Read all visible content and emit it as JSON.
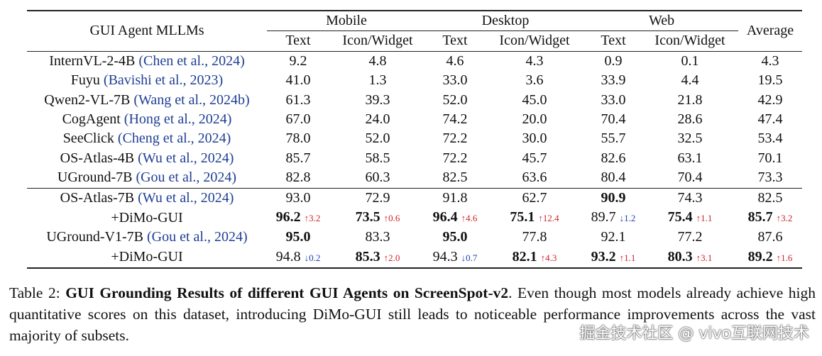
{
  "table": {
    "header": {
      "model_col": "GUI Agent MLLMs",
      "groups": [
        "Mobile",
        "Desktop",
        "Web"
      ],
      "average": "Average",
      "subcols": [
        "Text",
        "Icon/Widget",
        "Text",
        "Icon/Widget",
        "Text",
        "Icon/Widget"
      ]
    },
    "rows": [
      {
        "name": "InternVL-2-4B",
        "cite": "(Chen et al., 2024)",
        "cells": [
          {
            "v": "9.2"
          },
          {
            "v": "4.8"
          },
          {
            "v": "4.6"
          },
          {
            "v": "4.3"
          },
          {
            "v": "0.9"
          },
          {
            "v": "0.1"
          },
          {
            "v": "4.3"
          }
        ]
      },
      {
        "name": "Fuyu",
        "cite": "(Bavishi et al., 2023)",
        "cells": [
          {
            "v": "41.0"
          },
          {
            "v": "1.3"
          },
          {
            "v": "33.0"
          },
          {
            "v": "3.6"
          },
          {
            "v": "33.9"
          },
          {
            "v": "4.4"
          },
          {
            "v": "19.5"
          }
        ]
      },
      {
        "name": "Qwen2-VL-7B",
        "cite": "(Wang et al., 2024b)",
        "cells": [
          {
            "v": "61.3"
          },
          {
            "v": "39.3"
          },
          {
            "v": "52.0"
          },
          {
            "v": "45.0"
          },
          {
            "v": "33.0"
          },
          {
            "v": "21.8"
          },
          {
            "v": "42.9"
          }
        ]
      },
      {
        "name": "CogAgent",
        "cite": "(Hong et al., 2024)",
        "cells": [
          {
            "v": "67.0"
          },
          {
            "v": "24.0"
          },
          {
            "v": "74.2"
          },
          {
            "v": "20.0"
          },
          {
            "v": "70.4"
          },
          {
            "v": "28.6"
          },
          {
            "v": "47.4"
          }
        ]
      },
      {
        "name": "SeeClick",
        "cite": "(Cheng et al., 2024)",
        "cells": [
          {
            "v": "78.0"
          },
          {
            "v": "52.0"
          },
          {
            "v": "72.2"
          },
          {
            "v": "30.0"
          },
          {
            "v": "55.7"
          },
          {
            "v": "32.5"
          },
          {
            "v": "53.4"
          }
        ]
      },
      {
        "name": "OS-Atlas-4B",
        "cite": "(Wu et al., 2024)",
        "cells": [
          {
            "v": "85.7"
          },
          {
            "v": "58.5"
          },
          {
            "v": "72.2"
          },
          {
            "v": "45.7"
          },
          {
            "v": "82.6"
          },
          {
            "v": "63.1"
          },
          {
            "v": "70.1"
          }
        ]
      },
      {
        "name": "UGround-7B",
        "cite": "(Gou et al., 2024)",
        "cells": [
          {
            "v": "82.8"
          },
          {
            "v": "60.3"
          },
          {
            "v": "82.5"
          },
          {
            "v": "63.6"
          },
          {
            "v": "80.4"
          },
          {
            "v": "70.4"
          },
          {
            "v": "73.3"
          }
        ]
      },
      {
        "name": "OS-Atlas-7B",
        "cite": "(Wu et al., 2024)",
        "sep": true,
        "cells": [
          {
            "v": "93.0"
          },
          {
            "v": "72.9"
          },
          {
            "v": "91.8"
          },
          {
            "v": "62.7"
          },
          {
            "v": "90.9",
            "b": true
          },
          {
            "v": "74.3"
          },
          {
            "v": "82.5"
          }
        ]
      },
      {
        "name": "+DiMo-GUI",
        "cite": "",
        "cells": [
          {
            "v": "96.2",
            "b": true,
            "d": "↑3.2",
            "dir": "up"
          },
          {
            "v": "73.5",
            "b": true,
            "d": "↑0.6",
            "dir": "up"
          },
          {
            "v": "96.4",
            "b": true,
            "d": "↑4.6",
            "dir": "up"
          },
          {
            "v": "75.1",
            "b": true,
            "d": "↑12.4",
            "dir": "up"
          },
          {
            "v": "89.7",
            "d": "↓1.2",
            "dir": "down"
          },
          {
            "v": "75.4",
            "b": true,
            "d": "↑1.1",
            "dir": "up"
          },
          {
            "v": "85.7",
            "b": true,
            "d": "↑3.2",
            "dir": "up"
          }
        ]
      },
      {
        "name": "UGround-V1-7B",
        "cite": "(Gou et al., 2024)",
        "cells": [
          {
            "v": "95.0",
            "b": true
          },
          {
            "v": "83.3"
          },
          {
            "v": "95.0",
            "b": true
          },
          {
            "v": "77.8"
          },
          {
            "v": "92.1"
          },
          {
            "v": "77.2"
          },
          {
            "v": "87.6"
          }
        ]
      },
      {
        "name": "+DiMo-GUI",
        "cite": "",
        "cells": [
          {
            "v": "94.8",
            "d": "↓0.2",
            "dir": "down"
          },
          {
            "v": "85.3",
            "b": true,
            "d": "↑2.0",
            "dir": "up"
          },
          {
            "v": "94.3",
            "d": "↓0.7",
            "dir": "down"
          },
          {
            "v": "82.1",
            "b": true,
            "d": "↑4.3",
            "dir": "up"
          },
          {
            "v": "93.2",
            "b": true,
            "d": "↑1.1",
            "dir": "up"
          },
          {
            "v": "80.3",
            "b": true,
            "d": "↑3.1",
            "dir": "up"
          },
          {
            "v": "89.2",
            "b": true,
            "d": "↑1.6",
            "dir": "up"
          }
        ]
      }
    ]
  },
  "caption": {
    "label": "Table 2:",
    "title": "GUI Grounding Results of different GUI Agents on ScreenSpot-v2",
    "text": ". Even though most models already achieve high quantitative scores on this dataset, introducing DiMo-GUI still leads to noticeable performance improvements across the vast majority of subsets."
  },
  "watermark": "掘金技术社区 @ vivo互联网技术"
}
